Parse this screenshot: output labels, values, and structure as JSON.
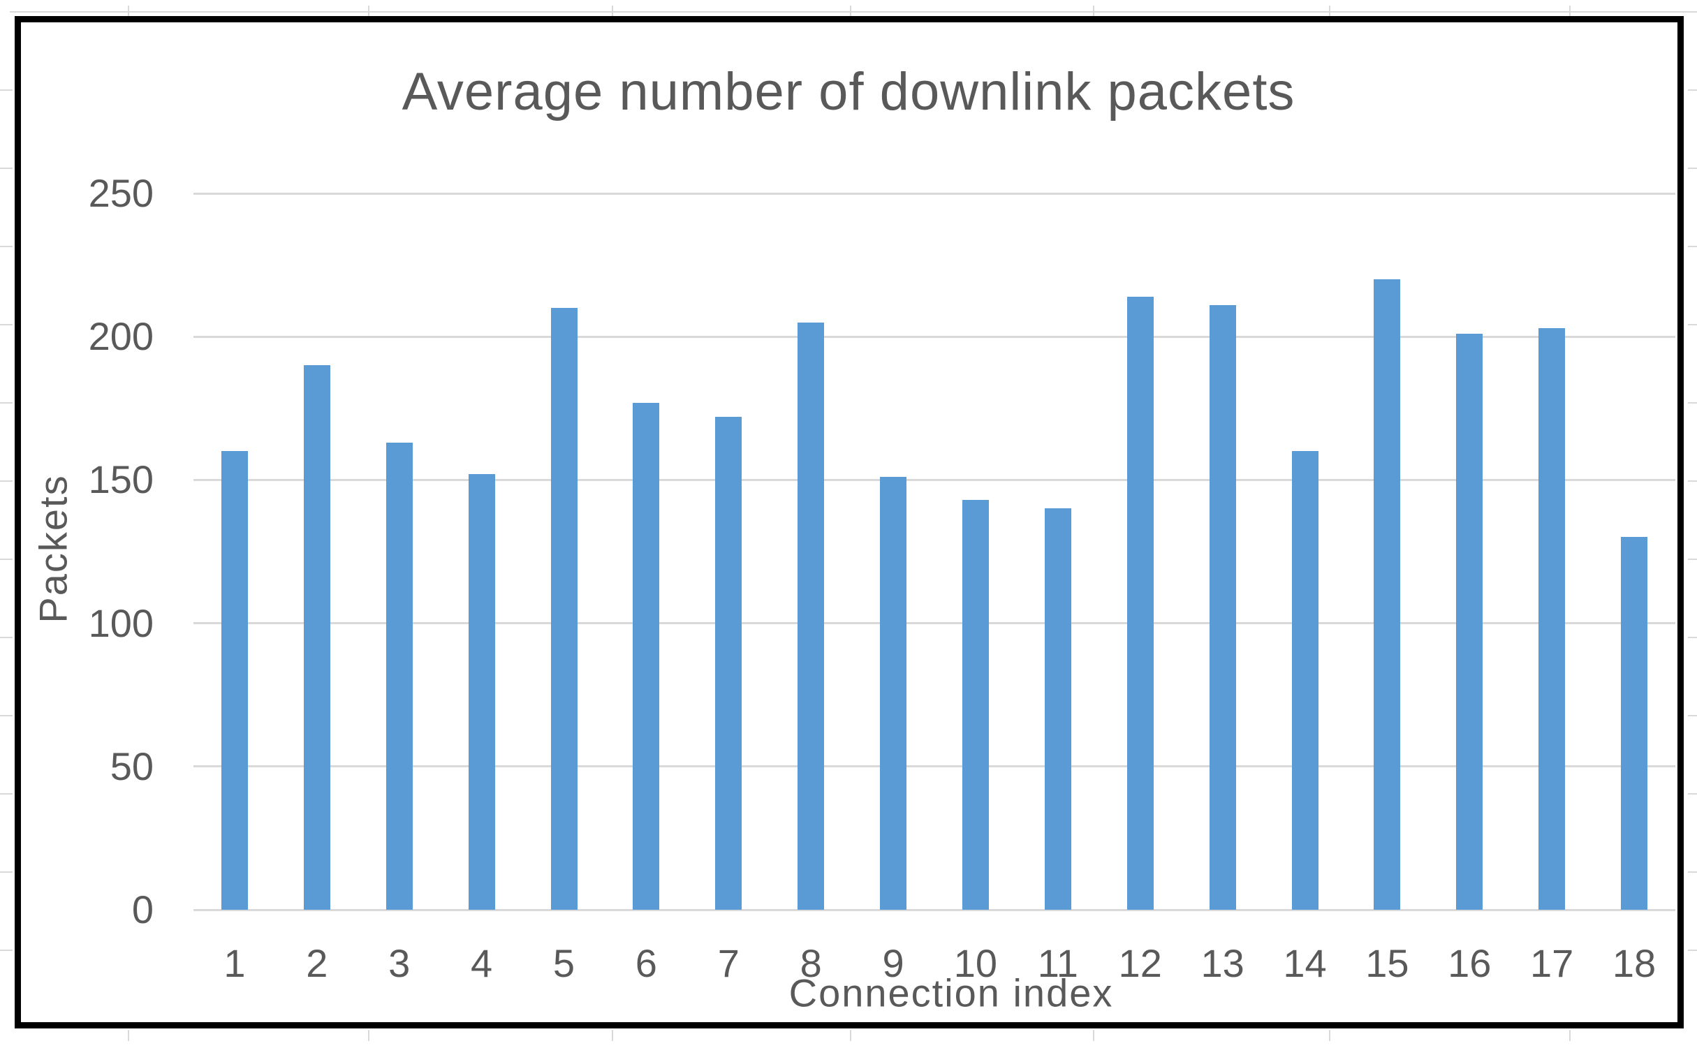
{
  "chart_data": {
    "type": "bar",
    "title": "Average number of downlink packets",
    "xlabel": "Connection index",
    "ylabel": "Packets",
    "categories": [
      "1",
      "2",
      "3",
      "4",
      "5",
      "6",
      "7",
      "8",
      "9",
      "10",
      "11",
      "12",
      "13",
      "14",
      "15",
      "16",
      "17",
      "18"
    ],
    "values": [
      160,
      190,
      163,
      152,
      210,
      177,
      172,
      205,
      151,
      143,
      140,
      214,
      211,
      160,
      220,
      201,
      203,
      130
    ],
    "ylim": [
      0,
      250
    ],
    "yticks": [
      0,
      50,
      100,
      150,
      200,
      250
    ],
    "grid": true,
    "legend": false,
    "bar_color": "#5b9bd5",
    "gridline_color": "#d9d9d9",
    "text_color": "#595959",
    "frame_color": "#000000"
  }
}
